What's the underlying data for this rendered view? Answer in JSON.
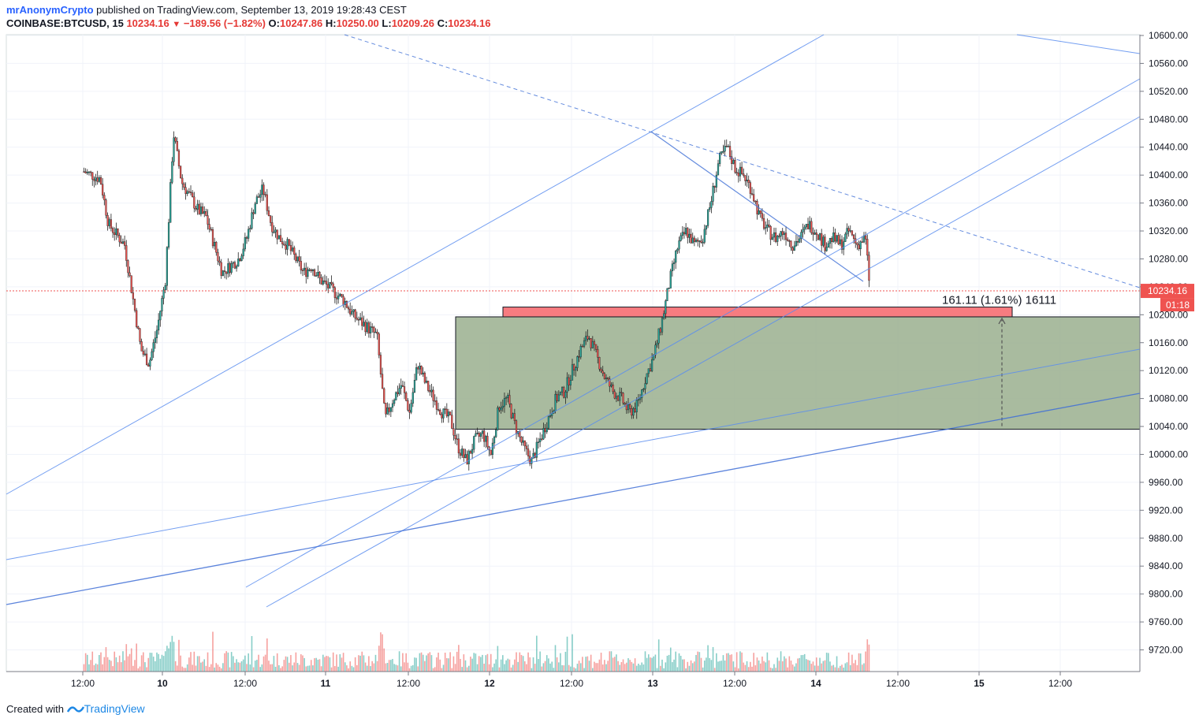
{
  "header": {
    "author": "mrAnonymCrypto",
    "published_text": "published on TradingView.com, September 13, 2019 19:28:43 CEST",
    "symbol": "COINBASE:BTCUSD",
    "interval": "15",
    "last": "10234.16",
    "change": "−189.56 (−1.82%)",
    "open_label": "O:",
    "open": "10247.86",
    "high_label": "H:",
    "high": "10250.00",
    "low_label": "L:",
    "low": "10209.26",
    "close_label": "C:",
    "close": "10234.16"
  },
  "footer": {
    "created_with": "Created with",
    "brand": "TradingView"
  },
  "colors": {
    "up": "#26a69a",
    "down": "#ef5350",
    "trendline": "#2962ff",
    "zone": "#9aaf8e",
    "marker": "#f77c80",
    "price_tag": "#ef5350"
  },
  "chart_data": {
    "type": "candlestick",
    "symbol": "COINBASE:BTCUSD",
    "interval_minutes": 15,
    "ylim": [
      9690,
      10610
    ],
    "y_ticks": [
      "10600.00",
      "10560.00",
      "10520.00",
      "10480.00",
      "10440.00",
      "10400.00",
      "10360.00",
      "10320.00",
      "10280.00",
      "10240.00",
      "10200.00",
      "10160.00",
      "10120.00",
      "10080.00",
      "10040.00",
      "10000.00",
      "9960.00",
      "9920.00",
      "9880.00",
      "9840.00",
      "9800.00",
      "9760.00",
      "9720.00"
    ],
    "x_ticks": [
      "12:00",
      "10",
      "12:00",
      "11",
      "12:00",
      "12",
      "12:00",
      "13",
      "12:00",
      "14",
      "12:00",
      "15",
      "12:00"
    ],
    "last_price_tag": "10234.16",
    "countdown_tag": "01:18",
    "measure_label": "161.11 (1.61%) 16111",
    "zones": [
      {
        "name": "demand-zone",
        "from_price": 10036,
        "to_price": 10197
      }
    ],
    "price_path": [
      [
        9.0,
        10405
      ],
      [
        9.1,
        10395
      ],
      [
        9.15,
        10330
      ],
      [
        9.25,
        10300
      ],
      [
        9.35,
        10150
      ],
      [
        9.4,
        10130
      ],
      [
        9.45,
        10180
      ],
      [
        9.5,
        10250
      ],
      [
        9.55,
        10460
      ],
      [
        9.6,
        10390
      ],
      [
        9.65,
        10370
      ],
      [
        9.7,
        10350
      ],
      [
        9.75,
        10340
      ],
      [
        9.8,
        10300
      ],
      [
        9.85,
        10260
      ],
      [
        9.9,
        10270
      ],
      [
        9.95,
        10280
      ],
      [
        10.0,
        10310
      ],
      [
        10.05,
        10360
      ],
      [
        10.1,
        10380
      ],
      [
        10.15,
        10330
      ],
      [
        10.2,
        10310
      ],
      [
        10.25,
        10300
      ],
      [
        10.3,
        10280
      ],
      [
        10.35,
        10260
      ],
      [
        10.4,
        10270
      ],
      [
        10.45,
        10250
      ],
      [
        10.5,
        10240
      ],
      [
        10.55,
        10230
      ],
      [
        10.6,
        10220
      ],
      [
        10.65,
        10200
      ],
      [
        10.7,
        10190
      ],
      [
        10.75,
        10180
      ],
      [
        10.8,
        10170
      ],
      [
        10.85,
        10050
      ],
      [
        10.9,
        10080
      ],
      [
        10.95,
        10100
      ],
      [
        11.0,
        10060
      ],
      [
        11.05,
        10130
      ],
      [
        11.1,
        10100
      ],
      [
        11.15,
        10080
      ],
      [
        11.2,
        10060
      ],
      [
        11.25,
        10050
      ],
      [
        11.3,
        10010
      ],
      [
        11.35,
        9990
      ],
      [
        11.4,
        10020
      ],
      [
        11.45,
        10030
      ],
      [
        11.5,
        10000
      ],
      [
        11.55,
        10070
      ],
      [
        11.6,
        10080
      ],
      [
        11.65,
        10040
      ],
      [
        11.7,
        10010
      ],
      [
        11.75,
        9990
      ],
      [
        11.8,
        10020
      ],
      [
        11.85,
        10050
      ],
      [
        11.9,
        10080
      ],
      [
        11.95,
        10090
      ],
      [
        12.0,
        10120
      ],
      [
        12.05,
        10150
      ],
      [
        12.1,
        10170
      ],
      [
        12.15,
        10140
      ],
      [
        12.2,
        10110
      ],
      [
        12.25,
        10090
      ],
      [
        12.3,
        10080
      ],
      [
        12.35,
        10060
      ],
      [
        12.4,
        10070
      ],
      [
        12.45,
        10110
      ],
      [
        12.5,
        10140
      ],
      [
        12.55,
        10190
      ],
      [
        12.6,
        10250
      ],
      [
        12.65,
        10300
      ],
      [
        12.7,
        10320
      ],
      [
        12.75,
        10300
      ],
      [
        12.8,
        10310
      ],
      [
        12.85,
        10360
      ],
      [
        12.9,
        10420
      ],
      [
        12.95,
        10440
      ],
      [
        13.0,
        10410
      ],
      [
        13.05,
        10400
      ],
      [
        13.1,
        10380
      ],
      [
        13.15,
        10340
      ],
      [
        13.2,
        10320
      ],
      [
        13.25,
        10310
      ],
      [
        13.3,
        10320
      ],
      [
        13.35,
        10300
      ],
      [
        13.4,
        10310
      ],
      [
        13.45,
        10330
      ],
      [
        13.5,
        10320
      ],
      [
        13.55,
        10300
      ],
      [
        13.6,
        10310
      ],
      [
        13.65,
        10300
      ],
      [
        13.7,
        10320
      ],
      [
        13.75,
        10300
      ],
      [
        13.8,
        10310
      ],
      [
        13.83,
        10234
      ]
    ]
  }
}
